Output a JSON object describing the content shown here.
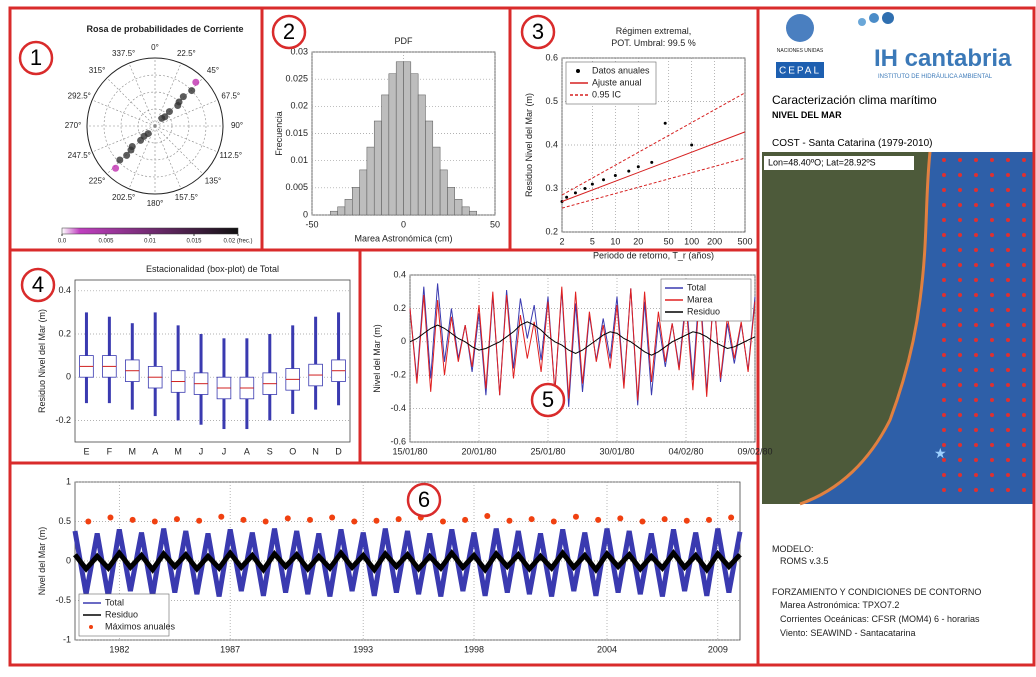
{
  "chart_data": [
    {
      "type": "polar",
      "title": "Rosa de probabilidades de Corriente",
      "directions": [
        {
          "value": 0,
          "label": "0°"
        },
        {
          "value": 22.5,
          "label": "22.5°"
        },
        {
          "value": 45,
          "label": "45°"
        },
        {
          "value": 67.5,
          "label": "67.5°"
        },
        {
          "value": 90,
          "label": "90°"
        },
        {
          "value": 112.5,
          "label": "112.5°"
        },
        {
          "value": 135,
          "label": "135°"
        },
        {
          "value": 157.5,
          "label": "157.5°"
        },
        {
          "value": 180,
          "label": "180°"
        },
        {
          "value": 202.5,
          "label": "202.5°"
        },
        {
          "value": 225,
          "label": "225°"
        },
        {
          "value": 247.5,
          "label": "247.5°"
        },
        {
          "value": 270,
          "label": "270°"
        },
        {
          "value": 292.5,
          "label": "292.5°"
        },
        {
          "value": 315,
          "label": "315°"
        },
        {
          "value": 337.5,
          "label": "337.5°"
        }
      ],
      "rlim": [
        0,
        1
      ],
      "theta": [
        42,
        45,
        48,
        44,
        46,
        43,
        222,
        225,
        228,
        224,
        226,
        223,
        47,
        227,
        45,
        225
      ],
      "r": [
        0.15,
        0.3,
        0.45,
        0.6,
        0.75,
        0.88,
        0.15,
        0.3,
        0.45,
        0.6,
        0.72,
        0.85,
        0.2,
        0.22,
        0.5,
        0.5
      ],
      "color": "#333",
      "colorbar_lim": [
        0,
        0.02
      ],
      "colorbar_ticks": [
        {
          "value": 0,
          "label": "0.0"
        },
        0.005,
        0.01,
        0.015,
        {
          "value": 0.02,
          "label": "0.02 (frec.)"
        }
      ]
    },
    {
      "type": "histogram",
      "title": "PDF",
      "xlabel": "Marea Astronómica (cm)",
      "ylabel": "Frecuencia",
      "color": "#bdbdbd",
      "bins": [
        -40,
        -36,
        -32,
        -28,
        -24,
        -20,
        -16,
        -12,
        -8,
        -4,
        0,
        4,
        8,
        12,
        16,
        20,
        24,
        28,
        32,
        36,
        40
      ],
      "values": [
        0.0007,
        0.0015,
        0.0029,
        0.0051,
        0.0083,
        0.0125,
        0.0173,
        0.0221,
        0.026,
        0.0282,
        0.0282,
        0.026,
        0.0221,
        0.0173,
        0.0125,
        0.0083,
        0.0051,
        0.0029,
        0.0015,
        0.0007
      ],
      "xlim": [
        -50,
        50
      ],
      "xticks": [
        -50,
        0,
        50
      ],
      "ylim": [
        0,
        0.03
      ],
      "yticks": [
        0,
        0.005,
        0.01,
        0.015,
        0.02,
        0.025,
        0.03
      ],
      "grid": true
    },
    {
      "type": "line",
      "title": "Régimen extremal,",
      "subtitle": "POT. Umbral: 99.5 %",
      "xlabel": "Periodo de retorno, T_r (años)",
      "ylabel": "Residuo Nivel del Mar (m)",
      "xscale": "log",
      "xlim": [
        2,
        500
      ],
      "xticks": [
        2,
        5,
        10,
        20,
        50,
        100,
        200,
        500
      ],
      "ylim": [
        0.2,
        0.6
      ],
      "yticks": [
        0.2,
        0.3,
        0.4,
        0.5,
        0.6
      ],
      "grid": true,
      "legend": "upper-left",
      "series": [
        {
          "name": "Datos anuales",
          "color": "#000",
          "marker": "dot",
          "x": [
            2,
            2.3,
            3,
            4,
            5,
            7,
            10,
            15,
            20,
            30,
            45,
            100
          ],
          "values": [
            0.27,
            0.28,
            0.29,
            0.3,
            0.31,
            0.32,
            0.33,
            0.34,
            0.35,
            0.36,
            0.45,
            0.4
          ]
        },
        {
          "name": "Ajuste anual",
          "color": "#d62020",
          "x": [
            2,
            500
          ],
          "values": [
            0.27,
            0.43
          ]
        },
        {
          "name": "0.95 IC",
          "color": "#d62020",
          "dash": true,
          "x": [
            2,
            500
          ],
          "values": [
            0.285,
            0.52
          ],
          "values_lower": [
            0.255,
            0.37
          ]
        }
      ]
    },
    {
      "type": "box",
      "title": "Estacionalidad (box-plot) de Total",
      "ylabel": "Residuo Nivel del Mar (m)",
      "color": "#3a3ab0",
      "categories": [
        "E",
        "F",
        "M",
        "A",
        "M",
        "J",
        "J",
        "A",
        "S",
        "O",
        "N",
        "D"
      ],
      "median": [
        0.05,
        0.05,
        0.03,
        0.0,
        -0.02,
        -0.03,
        -0.05,
        -0.05,
        -0.03,
        -0.01,
        0.01,
        0.03
      ],
      "q1": [
        0.0,
        0.0,
        -0.02,
        -0.05,
        -0.07,
        -0.08,
        -0.1,
        -0.1,
        -0.08,
        -0.06,
        -0.04,
        -0.02
      ],
      "q3": [
        0.1,
        0.1,
        0.08,
        0.05,
        0.03,
        0.02,
        0.0,
        0.0,
        0.02,
        0.04,
        0.06,
        0.08
      ],
      "whisker_low": [
        -0.12,
        -0.12,
        -0.15,
        -0.18,
        -0.2,
        -0.22,
        -0.24,
        -0.24,
        -0.2,
        -0.17,
        -0.15,
        -0.13
      ],
      "whisker_high": [
        0.3,
        0.28,
        0.25,
        0.3,
        0.24,
        0.2,
        0.18,
        0.18,
        0.2,
        0.24,
        0.28,
        0.3
      ],
      "ylim": [
        -0.3,
        0.45
      ],
      "yticks": [
        -0.2,
        0,
        0.2,
        0.4
      ],
      "grid": true
    },
    {
      "type": "line",
      "ylabel": "Nivel del Mar (m)",
      "legend": "upper-right",
      "x": [
        0,
        0.5,
        1,
        1.5,
        2,
        2.5,
        3,
        3.5,
        4,
        4.5,
        5,
        5.5,
        6,
        6.5,
        7,
        7.5,
        8,
        8.5,
        9,
        9.5,
        10,
        10.5,
        11,
        11.5,
        12,
        12.5,
        13,
        13.5,
        14,
        14.5,
        15,
        15.5,
        16,
        16.5,
        17,
        17.5,
        18,
        18.5,
        19,
        19.5,
        20,
        20.5,
        21,
        21.5,
        22,
        22.5,
        23,
        23.5,
        24,
        24.5,
        25
      ],
      "xlim": [
        0,
        25
      ],
      "xticks": [
        {
          "value": 0,
          "label": "15/01/80"
        },
        {
          "value": 5,
          "label": "20/01/80"
        },
        {
          "value": 10,
          "label": "25/01/80"
        },
        {
          "value": 15,
          "label": "30/01/80"
        },
        {
          "value": 20,
          "label": "04/02/80"
        },
        {
          "value": 25,
          "label": "09/02/80"
        }
      ],
      "ylim": [
        -0.6,
        0.4
      ],
      "yticks": [
        -0.6,
        -0.4,
        -0.2,
        0,
        0.2,
        0.4
      ],
      "grid": true,
      "series": [
        {
          "name": "Total",
          "color": "#3a3ab0",
          "values": [
            0.2,
            -0.23,
            0.33,
            -0.22,
            0.35,
            -0.12,
            0.2,
            -0.1,
            0.1,
            -0.18,
            0.17,
            -0.32,
            0.28,
            -0.32,
            0.31,
            -0.16,
            0.26,
            0.02,
            0.22,
            -0.11,
            0.27,
            -0.3,
            0.31,
            -0.39,
            0.23,
            -0.3,
            0.16,
            -0.11,
            0.14,
            -0.1,
            0.27,
            -0.26,
            0.32,
            -0.38,
            0.24,
            -0.32,
            0.12,
            -0.15,
            0.11,
            -0.15,
            0.27,
            -0.23,
            0.36,
            -0.3,
            0.28,
            -0.24,
            0.11,
            -0.13,
            0.11,
            -0.17,
            0.27
          ]
        },
        {
          "name": "Marea",
          "color": "#e02020",
          "values": [
            0.2,
            -0.25,
            0.28,
            -0.3,
            0.25,
            -0.2,
            0.15,
            -0.12,
            0.1,
            -0.15,
            0.22,
            -0.28,
            0.3,
            -0.32,
            0.28,
            -0.22,
            0.16,
            -0.1,
            0.12,
            -0.18,
            0.24,
            -0.3,
            0.33,
            -0.34,
            0.3,
            -0.25,
            0.18,
            -0.12,
            0.1,
            -0.16,
            0.22,
            -0.28,
            0.32,
            -0.35,
            0.3,
            -0.24,
            0.18,
            -0.12,
            0.11,
            -0.17,
            0.23,
            -0.29,
            0.31,
            -0.33,
            0.28,
            -0.22,
            0.15,
            -0.1,
            0.12,
            -0.18,
            0.24
          ]
        },
        {
          "name": "Residuo",
          "color": "#000",
          "values": [
            0.0,
            0.02,
            0.05,
            0.08,
            0.1,
            0.08,
            0.05,
            0.02,
            0.0,
            -0.03,
            -0.05,
            -0.04,
            -0.02,
            0.0,
            0.03,
            0.06,
            0.1,
            0.12,
            0.1,
            0.07,
            0.03,
            0.0,
            -0.02,
            -0.05,
            -0.07,
            -0.05,
            -0.02,
            0.01,
            0.04,
            0.06,
            0.05,
            0.02,
            0.0,
            -0.03,
            -0.06,
            -0.08,
            -0.06,
            -0.03,
            0.0,
            0.02,
            0.04,
            0.06,
            0.05,
            0.03,
            0.0,
            -0.02,
            -0.04,
            -0.03,
            -0.01,
            0.01,
            0.03
          ]
        }
      ]
    },
    {
      "type": "line",
      "ylabel": "Nivel del Mar (m)",
      "legend": "lower-left",
      "x": [
        1980,
        1980.5,
        1981,
        1981.5,
        1982,
        1982.5,
        1983,
        1983.5,
        1984,
        1984.5,
        1985,
        1985.5,
        1986,
        1986.5,
        1987,
        1987.5,
        1988,
        1988.5,
        1989,
        1989.5,
        1990,
        1990.5,
        1991,
        1991.5,
        1992,
        1992.5,
        1993,
        1993.5,
        1994,
        1994.5,
        1995,
        1995.5,
        1996,
        1996.5,
        1997,
        1997.5,
        1998,
        1998.5,
        1999,
        1999.5,
        2000,
        2000.5,
        2001,
        2001.5,
        2002,
        2002.5,
        2003,
        2003.5,
        2004,
        2004.5,
        2005,
        2005.5,
        2006,
        2006.5,
        2007,
        2007.5,
        2008,
        2008.5,
        2009,
        2009.5,
        2010
      ],
      "xlim": [
        1980,
        2010
      ],
      "xticks": [
        1982,
        1987,
        1993,
        1998,
        2004,
        2009
      ],
      "ylim": [
        -1,
        1
      ],
      "yticks": [
        -1,
        -0.5,
        0,
        0.5,
        1
      ],
      "grid": true,
      "series": [
        {
          "name": "Total",
          "color": "#3a3ab0",
          "values": [
            0.38,
            -0.42,
            0.35,
            -0.45,
            0.4,
            -0.38,
            0.36,
            -0.44,
            0.41,
            -0.4,
            0.38,
            -0.42,
            0.35,
            -0.45,
            0.4,
            -0.38,
            0.36,
            -0.44,
            0.41,
            -0.4,
            0.38,
            -0.42,
            0.35,
            -0.45,
            0.4,
            -0.38,
            0.36,
            -0.44,
            0.41,
            -0.4,
            0.38,
            -0.42,
            0.35,
            -0.45,
            0.4,
            -0.38,
            0.36,
            -0.44,
            0.41,
            -0.4,
            0.38,
            -0.42,
            0.35,
            -0.45,
            0.4,
            -0.38,
            0.36,
            -0.44,
            0.41,
            -0.4,
            0.38,
            -0.42,
            0.35,
            -0.45,
            0.4,
            -0.38,
            0.36,
            -0.44,
            0.41,
            -0.4,
            0.37
          ],
          "width": 5
        },
        {
          "name": "Residuo",
          "color": "#000",
          "values": [
            0.08,
            -0.1,
            0.06,
            -0.09,
            0.1,
            -0.08,
            0.07,
            -0.11,
            0.09,
            -0.07,
            0.08,
            -0.1,
            0.06,
            -0.09,
            0.1,
            -0.08,
            0.07,
            -0.11,
            0.09,
            -0.07,
            0.08,
            -0.1,
            0.06,
            -0.09,
            0.1,
            -0.08,
            0.07,
            -0.11,
            0.09,
            -0.07,
            0.08,
            -0.1,
            0.06,
            -0.09,
            0.1,
            -0.08,
            0.07,
            -0.11,
            0.09,
            -0.07,
            0.08,
            -0.1,
            0.06,
            -0.09,
            0.1,
            -0.08,
            0.07,
            -0.11,
            0.09,
            -0.07,
            0.08,
            -0.1,
            0.06,
            -0.09,
            0.1,
            -0.08,
            0.07,
            -0.11,
            0.09,
            -0.07,
            0.08
          ],
          "width": 5
        },
        {
          "name": "Máximos anuales",
          "color": "#f04010",
          "marker": "dot",
          "x": [
            1980.6,
            1981.6,
            1982.6,
            1983.6,
            1984.6,
            1985.6,
            1986.6,
            1987.6,
            1988.6,
            1989.6,
            1990.6,
            1991.6,
            1992.6,
            1993.6,
            1994.6,
            1995.6,
            1996.6,
            1997.6,
            1998.6,
            1999.6,
            2000.6,
            2001.6,
            2002.6,
            2003.6,
            2004.6,
            2005.6,
            2006.6,
            2007.6,
            2008.6,
            2009.6
          ],
          "values": [
            0.5,
            0.55,
            0.52,
            0.5,
            0.53,
            0.51,
            0.56,
            0.52,
            0.5,
            0.54,
            0.52,
            0.55,
            0.5,
            0.51,
            0.53,
            0.55,
            0.5,
            0.52,
            0.57,
            0.51,
            0.53,
            0.5,
            0.56,
            0.52,
            0.54,
            0.5,
            0.53,
            0.51,
            0.52,
            0.55
          ]
        }
      ]
    }
  ],
  "panel_numbers": [
    "1",
    "2",
    "3",
    "4",
    "5",
    "6"
  ],
  "info": {
    "un": "NACIONES UNIDAS",
    "cepal": "CEPAL",
    "ih": "IH cantabria",
    "ih_sub": "INSTITUTO DE HIDRÁULICA AMBIENTAL",
    "title": "Caracterización clima marítimo",
    "subtitle": "NIVEL DEL MAR",
    "site": "COST - Santa Catarina (1979-2010)",
    "coords": "Lon=48.40ºO; Lat=28.92ºS",
    "model_heading": "MODELO:",
    "model": "ROMS v.3.5",
    "forcing_heading": "FORZAMIENTO Y CONDICIONES DE CONTORNO",
    "forcing": [
      "Marea Astronómica: TPXO7.2",
      "Corrientes Oceánicas: CFSR (MOM4) 6 - horarias",
      "Viento: SEAWIND - Santacatarina"
    ]
  }
}
